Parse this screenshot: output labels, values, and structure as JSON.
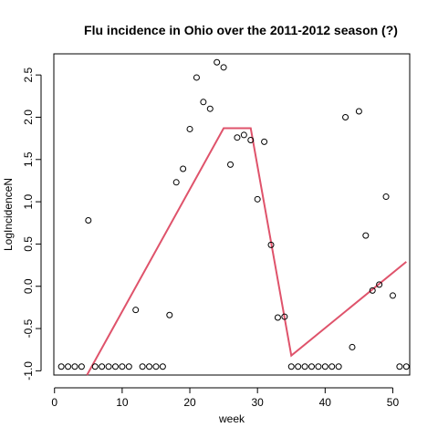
{
  "chart_data": {
    "type": "scatter",
    "title": "Flu incidence in Ohio over the 2011-2012 season (?)",
    "xlabel": "week",
    "ylabel": "LogIncidenceN",
    "xlim": [
      -0.1,
      52.5
    ],
    "ylim": [
      -1.05,
      2.75
    ],
    "xticks": [
      0,
      10,
      20,
      30,
      40,
      50
    ],
    "yticks": [
      -1.0,
      -0.5,
      0.0,
      0.5,
      1.0,
      1.5,
      2.0,
      2.5
    ],
    "ytick_labels": [
      "-1.0",
      "-0.5",
      "0.0",
      "0.5",
      "1.0",
      "1.5",
      "2.0",
      "2.5"
    ],
    "grid": false,
    "point_color": "#000000",
    "line_color": "#DF536B",
    "points": [
      [
        1,
        -0.95
      ],
      [
        2,
        -0.95
      ],
      [
        3,
        -0.95
      ],
      [
        4,
        -0.95
      ],
      [
        5,
        0.78
      ],
      [
        6,
        -0.95
      ],
      [
        7,
        -0.95
      ],
      [
        8,
        -0.95
      ],
      [
        9,
        -0.95
      ],
      [
        10,
        -0.95
      ],
      [
        11,
        -0.95
      ],
      [
        12,
        -0.28
      ],
      [
        13,
        -0.95
      ],
      [
        14,
        -0.95
      ],
      [
        15,
        -0.95
      ],
      [
        16,
        -0.95
      ],
      [
        17,
        -0.34
      ],
      [
        18,
        1.23
      ],
      [
        19,
        1.39
      ],
      [
        20,
        1.86
      ],
      [
        21,
        2.47
      ],
      [
        22,
        2.18
      ],
      [
        23,
        2.1
      ],
      [
        24,
        2.65
      ],
      [
        25,
        2.59
      ],
      [
        26,
        1.44
      ],
      [
        27,
        1.76
      ],
      [
        28,
        1.79
      ],
      [
        29,
        1.73
      ],
      [
        30,
        1.03
      ],
      [
        31,
        1.71
      ],
      [
        32,
        0.49
      ],
      [
        33,
        -0.37
      ],
      [
        34,
        -0.36
      ],
      [
        35,
        -0.95
      ],
      [
        36,
        -0.95
      ],
      [
        37,
        -0.95
      ],
      [
        38,
        -0.95
      ],
      [
        39,
        -0.95
      ],
      [
        40,
        -0.95
      ],
      [
        41,
        -0.95
      ],
      [
        42,
        -0.95
      ],
      [
        43,
        2.0
      ],
      [
        44,
        -0.72
      ],
      [
        45,
        2.07
      ],
      [
        46,
        0.6
      ],
      [
        47,
        -0.05
      ],
      [
        48,
        0.02
      ],
      [
        49,
        1.06
      ],
      [
        50,
        -0.11
      ],
      [
        51,
        -0.95
      ],
      [
        52,
        -0.95
      ]
    ],
    "fit_line": [
      [
        4.8,
        -1.05
      ],
      [
        25,
        1.87
      ],
      [
        29,
        1.87
      ],
      [
        35,
        -0.82
      ],
      [
        52,
        0.29
      ]
    ]
  }
}
